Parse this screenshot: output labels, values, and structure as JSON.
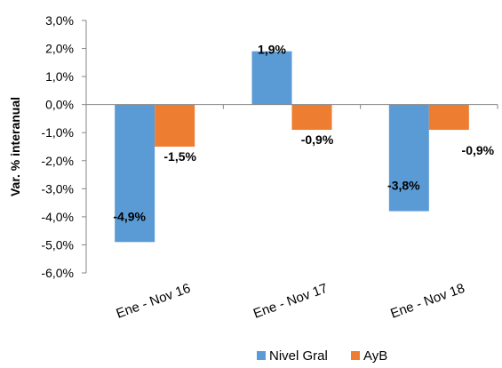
{
  "chart_data": {
    "type": "bar",
    "categories": [
      "Ene - Nov 16",
      "Ene - Nov 17",
      "Ene - Nov 18"
    ],
    "series": [
      {
        "name": "Nivel Gral",
        "values": [
          -4.9,
          1.9,
          -3.8
        ],
        "labels": [
          "-4,9%",
          "1,9%",
          "-3,8%"
        ],
        "color": "#5B9BD5"
      },
      {
        "name": "AyB",
        "values": [
          -1.5,
          -0.9,
          -0.9
        ],
        "labels": [
          "-1,5%",
          "-0,9%",
          "-0,9%"
        ],
        "color": "#ED7D31"
      }
    ],
    "ylabel": "Var. % interanual",
    "xlabel": "",
    "ylim": [
      -6.0,
      3.0
    ],
    "yticks": [
      3.0,
      2.0,
      1.0,
      0.0,
      -1.0,
      -2.0,
      -3.0,
      -4.0,
      -5.0,
      -6.0
    ],
    "ytick_labels": [
      "3,0%",
      "2,0%",
      "1,0%",
      "0,0%",
      "-1,0%",
      "-2,0%",
      "-3,0%",
      "-4,0%",
      "-5,0%",
      "-6,0%"
    ],
    "grid": false,
    "legend_position": "bottom-right"
  }
}
